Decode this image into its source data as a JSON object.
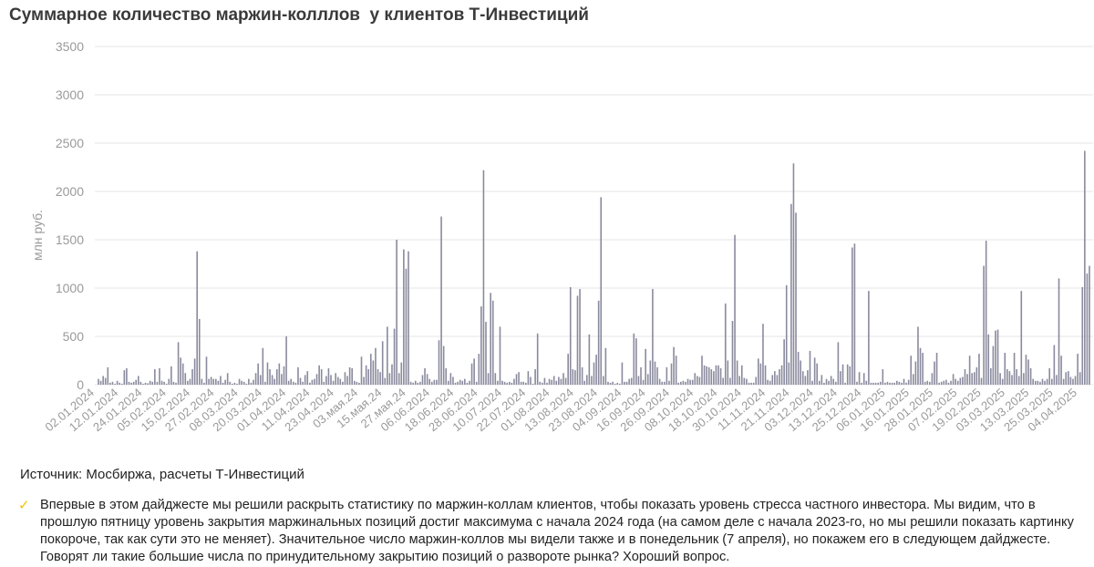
{
  "colors": {
    "bar": "#8a8a9e",
    "grid": "#e6e6e6",
    "axis_text": "#9a9a9a",
    "check": "#f2c200"
  },
  "source_text": "Источник: Мосбиржа, расчеты Т-Инвестиций",
  "note_text": "Впервые в этом дайджесте мы решили раскрыть статистику по маржин-коллам клиентов, чтобы показать уровень стресса частного инвестора. Мы видим, что в прошлую пятницу уровень закрытия маржинальных позиций достиг максимума с начала 2024 года (на самом деле с начала 2023-го, но мы решили показать картинку покороче, так как сути это не меняет). Значительное число маржин-коллов мы видели также и в понедельник (7 апреля), но покажем его в следующем дайджесте. Говорят ли такие большие числа по принудительному закрытию позиций о развороте рынка? Хороший вопрос.",
  "note_icon": "check-icon",
  "chart_data": {
    "type": "bar",
    "title": "Суммарное количество маржин-колллов  у клиентов Т-Инвестиций",
    "ylabel": "млн руб.",
    "ylim": [
      0,
      3500
    ],
    "yticks": [
      0,
      500,
      1000,
      1500,
      2000,
      2500,
      3000,
      3500
    ],
    "grid": true,
    "legend": "none",
    "xtick_labels": [
      "02.01.2024",
      "12.01.2024",
      "24.01.2024",
      "05.02.2024",
      "15.02.2024",
      "27.02.2024",
      "08.03.2024",
      "20.03.2024",
      "01.04.2024",
      "11.04.2024",
      "23.04.2024",
      "03.мая.24",
      "15.мая.24",
      "27.мая.24",
      "06.06.2024",
      "18.06.2024",
      "28.06.2024",
      "10.07.2024",
      "22.07.2024",
      "01.08.2024",
      "13.08.2024",
      "23.08.2024",
      "04.09.2024",
      "16.09.2024",
      "26.09.2024",
      "08.10.2024",
      "18.10.2024",
      "30.10.2024",
      "11.11.2024",
      "21.11.2024",
      "03.12.2024",
      "13.12.2024",
      "25.12.2024",
      "06.01.2025",
      "16.01.2025",
      "28.01.2025",
      "07.02.2025",
      "19.02.2025",
      "03.03.2025",
      "13.03.2025",
      "25.03.2025",
      "04.04.2025"
    ],
    "values": [
      60,
      40,
      90,
      70,
      180,
      20,
      30,
      10,
      40,
      20,
      10,
      150,
      170,
      30,
      20,
      30,
      50,
      90,
      30,
      10,
      20,
      15,
      40,
      30,
      160,
      30,
      170,
      40,
      30,
      10,
      60,
      190,
      30,
      20,
      440,
      280,
      220,
      120,
      40,
      60,
      160,
      270,
      1380,
      680,
      60,
      20,
      290,
      60,
      80,
      60,
      60,
      40,
      90,
      20,
      50,
      120,
      30,
      10,
      20,
      10,
      60,
      40,
      30,
      10,
      60,
      20,
      50,
      120,
      220,
      100,
      380,
      30,
      230,
      160,
      100,
      60,
      160,
      220,
      110,
      190,
      500,
      40,
      60,
      30,
      20,
      180,
      70,
      30,
      100,
      140,
      20,
      50,
      60,
      110,
      200,
      160,
      30,
      90,
      170,
      100,
      40,
      120,
      80,
      60,
      30,
      130,
      90,
      180,
      170,
      40,
      30,
      20,
      290,
      80,
      200,
      160,
      320,
      250,
      380,
      160,
      130,
      450,
      70,
      600,
      120,
      210,
      580,
      1500,
      120,
      230,
      1400,
      1200,
      1380,
      30,
      20,
      40,
      20,
      30,
      100,
      170,
      110,
      60,
      30,
      50,
      50,
      460,
      1740,
      400,
      170,
      40,
      120,
      80,
      20,
      30,
      50,
      40,
      60,
      20,
      40,
      220,
      270,
      30,
      320,
      810,
      2220,
      650,
      120,
      950,
      870,
      120,
      40,
      600,
      40,
      30,
      20,
      30,
      20,
      60,
      110,
      130,
      30,
      30,
      20,
      140,
      80,
      10,
      160,
      530,
      30,
      20,
      70,
      20,
      60,
      50,
      90,
      40,
      80,
      60,
      120,
      70,
      320,
      1010,
      160,
      150,
      920,
      990,
      180,
      40,
      100,
      520,
      90,
      230,
      310,
      870,
      1940,
      90,
      380,
      30,
      20,
      30,
      10,
      20,
      10,
      230,
      30,
      30,
      60,
      70,
      530,
      480,
      90,
      180,
      50,
      370,
      110,
      250,
      990,
      240,
      180,
      60,
      30,
      30,
      180,
      40,
      220,
      390,
      300,
      20,
      30,
      40,
      30,
      60,
      50,
      50,
      120,
      90,
      80,
      300,
      200,
      190,
      180,
      160,
      140,
      200,
      200,
      170,
      70,
      840,
      250,
      70,
      660,
      1550,
      250,
      90,
      200,
      70,
      60,
      20,
      20,
      20,
      80,
      270,
      220,
      630,
      200,
      50,
      40,
      100,
      140,
      100,
      160,
      200,
      470,
      1030,
      230,
      1870,
      2290,
      1780,
      340,
      250,
      140,
      90,
      150,
      350,
      40,
      280,
      220,
      40,
      100,
      20,
      60,
      40,
      90,
      60,
      30,
      440,
      140,
      210,
      20,
      210,
      190,
      1420,
      1460,
      30,
      130,
      20,
      120,
      40,
      970,
      20,
      20,
      20,
      20,
      30,
      160,
      20,
      30,
      20,
      20,
      20,
      40,
      30,
      20,
      60,
      20,
      50,
      300,
      110,
      240,
      600,
      380,
      330,
      30,
      40,
      30,
      120,
      240,
      330,
      20,
      30,
      40,
      50,
      20,
      40,
      110,
      60,
      40,
      70,
      80,
      160,
      110,
      300,
      120,
      130,
      180,
      320,
      70,
      1230,
      1490,
      520,
      170,
      400,
      560,
      570,
      120,
      60,
      330,
      160,
      140,
      100,
      330,
      160,
      90,
      970,
      120,
      310,
      260,
      170,
      60,
      40,
      40,
      30,
      60,
      40,
      60,
      170,
      60,
      410,
      100,
      1100,
      300,
      60,
      130,
      140,
      80,
      60,
      90,
      320,
      130,
      1010,
      2420,
      1150,
      1230
    ]
  }
}
